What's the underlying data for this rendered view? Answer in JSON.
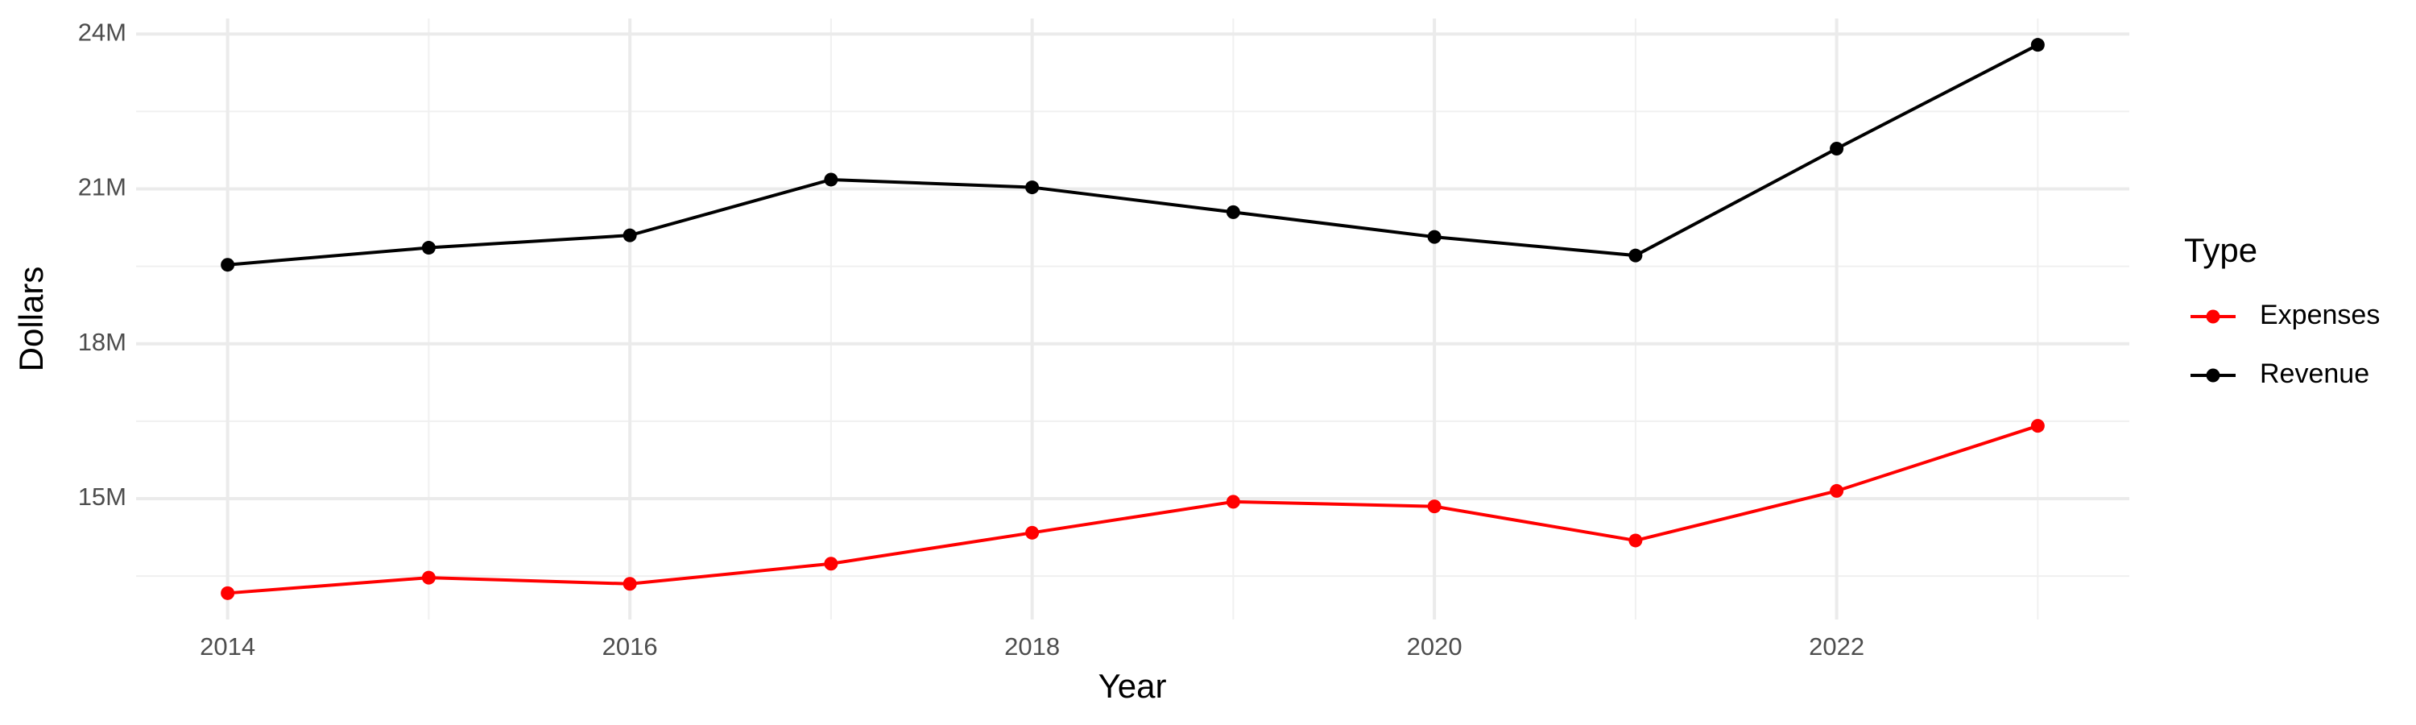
{
  "chart_data": {
    "type": "line",
    "x_label": "Year",
    "y_label": "Dollars",
    "legend_title": "Type",
    "legend_position": "right",
    "grid": true,
    "x": [
      2014,
      2015,
      2016,
      2017,
      2018,
      2019,
      2020,
      2021,
      2022,
      2023
    ],
    "series": [
      {
        "name": "Expenses",
        "color": "#ff0000",
        "values": [
          13170000,
          13470000,
          13350000,
          13740000,
          14340000,
          14940000,
          14850000,
          14190000,
          15150000,
          16410000
        ]
      },
      {
        "name": "Revenue",
        "color": "#000000",
        "values": [
          19530000,
          19860000,
          20100000,
          21180000,
          21030000,
          20550000,
          20070000,
          19710000,
          21780000,
          23790000
        ]
      }
    ],
    "xlim": [
      2013.545,
      2023.455
    ],
    "xticks": [
      2014,
      2016,
      2018,
      2020,
      2022
    ],
    "ylim": [
      12660000,
      24300000
    ],
    "yticks": [
      {
        "value": 15000000,
        "label": "15M"
      },
      {
        "value": 18000000,
        "label": "18M"
      },
      {
        "value": 21000000,
        "label": "21M"
      },
      {
        "value": 24000000,
        "label": "24M"
      }
    ]
  }
}
